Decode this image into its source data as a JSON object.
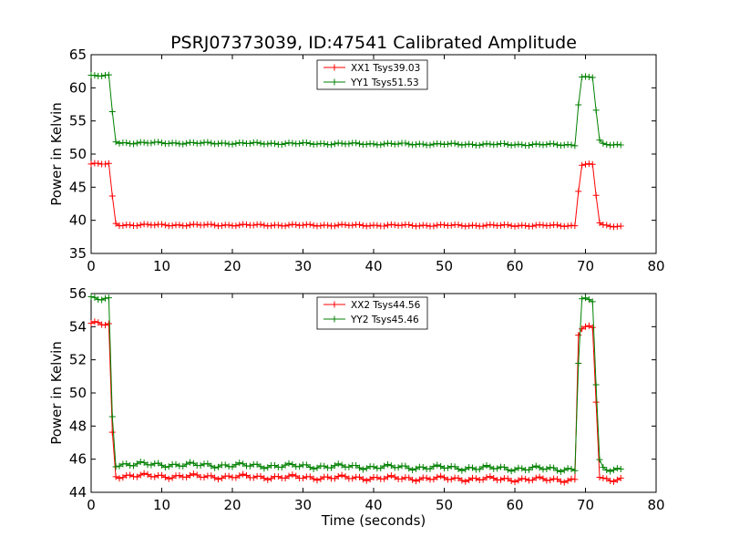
{
  "chart_data": [
    {
      "type": "line",
      "title": "PSRJ07373039, ID:47541 Calibrated Amplitude",
      "xlabel": "",
      "ylabel": "Power in Kelvin",
      "xlim": [
        0,
        80
      ],
      "ylim": [
        35,
        65
      ],
      "xticks": [
        "0",
        "10",
        "20",
        "30",
        "40",
        "50",
        "60",
        "70",
        "80"
      ],
      "yticks": [
        "35",
        "40",
        "45",
        "50",
        "55",
        "60",
        "65"
      ],
      "legend_position": "top-center",
      "series": [
        {
          "name": "XX1 Tsys39.03",
          "color": "#ff0000",
          "low": 39.2,
          "high": 48.5,
          "points": [
            [
              0,
              48.5
            ],
            [
              2.7,
              48.5
            ],
            [
              2.8,
              45.9
            ],
            [
              3.3,
              40.0
            ],
            [
              3.6,
              39.3
            ],
            [
              68.5,
              39.2
            ],
            [
              68.8,
              41.5
            ],
            [
              69.2,
              47.5
            ],
            [
              69.4,
              48.4
            ],
            [
              71.0,
              48.4
            ],
            [
              71.5,
              43.8
            ],
            [
              71.9,
              39.8
            ],
            [
              72.2,
              39.2
            ],
            [
              75,
              39.1
            ]
          ]
        },
        {
          "name": "YY1 Tsys51.53",
          "color": "#008000",
          "low": 51.6,
          "high": 61.8,
          "points": [
            [
              0,
              61.8
            ],
            [
              2.7,
              61.8
            ],
            [
              2.8,
              59.0
            ],
            [
              3.3,
              52.4
            ],
            [
              3.6,
              51.7
            ],
            [
              68.5,
              51.4
            ],
            [
              68.8,
              54.2
            ],
            [
              69.2,
              60.9
            ],
            [
              69.4,
              61.6
            ],
            [
              71.0,
              61.6
            ],
            [
              71.5,
              56.6
            ],
            [
              71.9,
              52.2
            ],
            [
              72.2,
              51.5
            ],
            [
              75,
              51.4
            ]
          ]
        }
      ]
    },
    {
      "type": "line",
      "title": "",
      "xlabel": "Time (seconds)",
      "ylabel": "Power in Kelvin",
      "xlim": [
        0,
        80
      ],
      "ylim": [
        44,
        56
      ],
      "xticks": [
        "0",
        "10",
        "20",
        "30",
        "40",
        "50",
        "60",
        "70",
        "80"
      ],
      "yticks": [
        "44",
        "46",
        "48",
        "50",
        "52",
        "54",
        "56"
      ],
      "legend_position": "top-center",
      "series": [
        {
          "name": "XX2 Tsys44.56",
          "color": "#ff0000",
          "low": 44.85,
          "high": 54.15,
          "points": [
            [
              0,
              54.15
            ],
            [
              2.7,
              54.15
            ],
            [
              2.8,
              51.5
            ],
            [
              3.1,
              45.6
            ],
            [
              3.4,
              45.0
            ],
            [
              68.5,
              44.75
            ],
            [
              68.8,
              53.2
            ],
            [
              69.2,
              53.9
            ],
            [
              71.1,
              53.9
            ],
            [
              71.5,
              49.5
            ],
            [
              71.9,
              45.0
            ],
            [
              72.2,
              44.8
            ],
            [
              75,
              44.8
            ]
          ]
        },
        {
          "name": "YY2 Tsys45.46",
          "color": "#008000",
          "low": 45.6,
          "high": 55.65,
          "points": [
            [
              0,
              55.65
            ],
            [
              2.7,
              55.65
            ],
            [
              2.8,
              52.8
            ],
            [
              3.1,
              46.5
            ],
            [
              3.4,
              45.7
            ],
            [
              68.5,
              45.4
            ],
            [
              68.8,
              48.1
            ],
            [
              69.2,
              55.6
            ],
            [
              71.1,
              55.55
            ],
            [
              71.5,
              50.5
            ],
            [
              71.9,
              46.1
            ],
            [
              72.2,
              45.45
            ],
            [
              75,
              45.4
            ]
          ]
        }
      ]
    }
  ]
}
